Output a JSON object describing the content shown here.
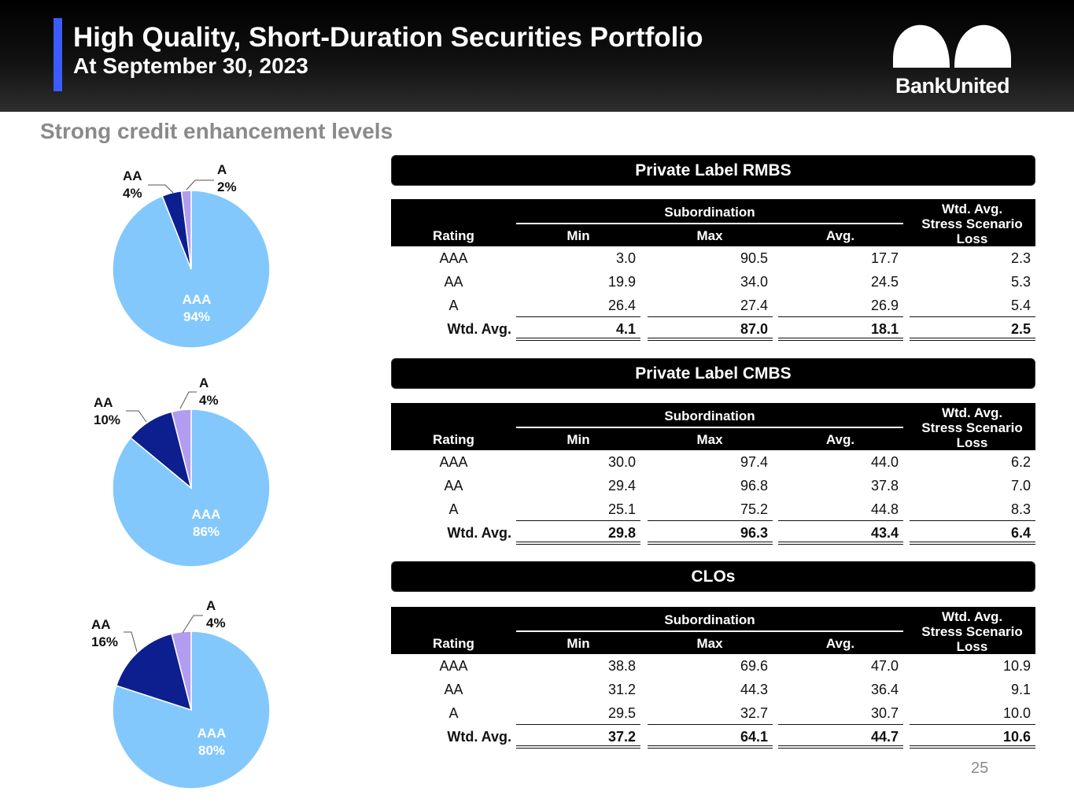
{
  "header": {
    "title": "High Quality, Short-Duration Securities Portfolio",
    "subtitle": "At September 30, 2023",
    "logo_text": "BankUnited",
    "accent_color": "#3b5bfb"
  },
  "section_heading": "Strong credit enhancement levels",
  "pie_colors": {
    "AAA": "#82c8fc",
    "AA": "#0d1f8f",
    "A": "#b29cf0"
  },
  "pies": [
    {
      "name": "rmbs",
      "slices": [
        {
          "label": "AAA",
          "value": 94,
          "text": "94%"
        },
        {
          "label": "AA",
          "value": 4,
          "text": "4%"
        },
        {
          "label": "A",
          "value": 2,
          "text": "2%"
        }
      ]
    },
    {
      "name": "cmbs",
      "slices": [
        {
          "label": "AAA",
          "value": 86,
          "text": "86%"
        },
        {
          "label": "AA",
          "value": 10,
          "text": "10%"
        },
        {
          "label": "A",
          "value": 4,
          "text": "4%"
        }
      ]
    },
    {
      "name": "clos",
      "slices": [
        {
          "label": "AAA",
          "value": 80,
          "text": "80%"
        },
        {
          "label": "AA",
          "value": 16,
          "text": "16%"
        },
        {
          "label": "A",
          "value": 4,
          "text": "4%"
        }
      ]
    }
  ],
  "table_headers": {
    "subordination": "Subordination",
    "rating": "Rating",
    "min": "Min",
    "max": "Max",
    "avg": "Avg.",
    "loss_line1": "Wtd. Avg.",
    "loss_line2": "Stress Scenario",
    "loss_line3": "Loss"
  },
  "tables": [
    {
      "title": "Private Label RMBS",
      "rows": [
        {
          "rating": "AAA",
          "min": "3.0",
          "max": "90.5",
          "avg": "17.7",
          "loss": "2.3"
        },
        {
          "rating": "AA",
          "min": "19.9",
          "max": "34.0",
          "avg": "24.5",
          "loss": "5.3"
        },
        {
          "rating": "A",
          "min": "26.4",
          "max": "27.4",
          "avg": "26.9",
          "loss": "5.4"
        }
      ],
      "total": {
        "rating": "Wtd. Avg.",
        "min": "4.1",
        "max": "87.0",
        "avg": "18.1",
        "loss": "2.5"
      }
    },
    {
      "title": "Private Label CMBS",
      "rows": [
        {
          "rating": "AAA",
          "min": "30.0",
          "max": "97.4",
          "avg": "44.0",
          "loss": "6.2"
        },
        {
          "rating": "AA",
          "min": "29.4",
          "max": "96.8",
          "avg": "37.8",
          "loss": "7.0"
        },
        {
          "rating": "A",
          "min": "25.1",
          "max": "75.2",
          "avg": "44.8",
          "loss": "8.3"
        }
      ],
      "total": {
        "rating": "Wtd. Avg.",
        "min": "29.8",
        "max": "96.3",
        "avg": "43.4",
        "loss": "6.4"
      }
    },
    {
      "title": "CLOs",
      "rows": [
        {
          "rating": "AAA",
          "min": "38.8",
          "max": "69.6",
          "avg": "47.0",
          "loss": "10.9"
        },
        {
          "rating": "AA",
          "min": "31.2",
          "max": "44.3",
          "avg": "36.4",
          "loss": "9.1"
        },
        {
          "rating": "A",
          "min": "29.5",
          "max": "32.7",
          "avg": "30.7",
          "loss": "10.0"
        }
      ],
      "total": {
        "rating": "Wtd. Avg.",
        "min": "37.2",
        "max": "64.1",
        "avg": "44.7",
        "loss": "10.6"
      }
    }
  ],
  "page_number": "25"
}
